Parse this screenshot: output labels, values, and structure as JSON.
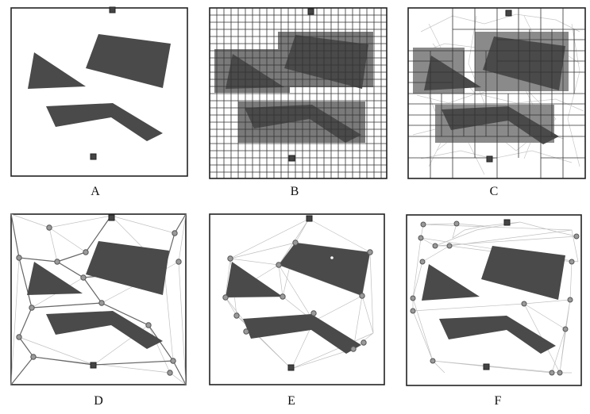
{
  "panels": [
    {
      "id": "A",
      "label": "A"
    },
    {
      "id": "B",
      "label": "B"
    },
    {
      "id": "C",
      "label": "C"
    },
    {
      "id": "D",
      "label": "D"
    },
    {
      "id": "E",
      "label": "E"
    },
    {
      "id": "F",
      "label": "F"
    }
  ],
  "colors": {
    "obstacle": "#4a4a4a",
    "border": "#222222",
    "grid": "#333333",
    "roadmap": "#bdbdbd",
    "node_fill": "#9a9a9a",
    "node_stroke": "#555555",
    "marker": "#444444"
  }
}
